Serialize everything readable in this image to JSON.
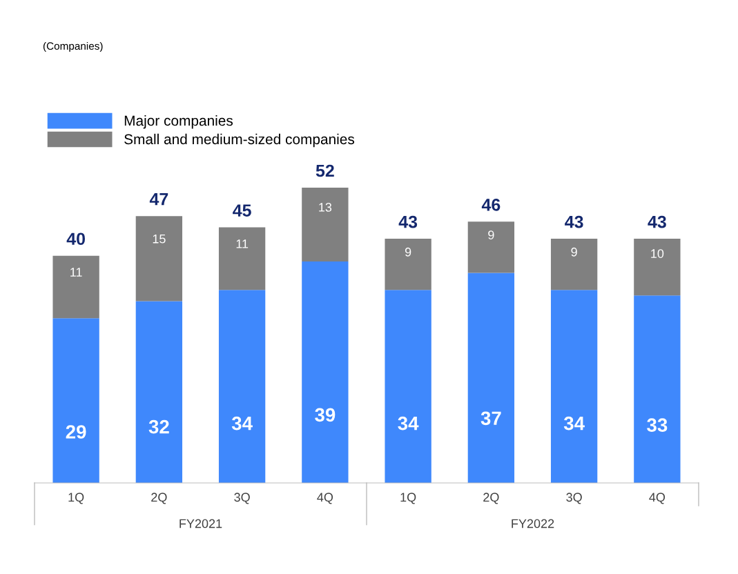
{
  "chart_data": {
    "type": "bar",
    "stacked": true,
    "categories": [
      "1Q",
      "2Q",
      "3Q",
      "4Q",
      "1Q",
      "2Q",
      "3Q",
      "4Q"
    ],
    "series": [
      {
        "name": "Major companies",
        "color": "#3f88fc",
        "values": [
          29,
          32,
          34,
          39,
          34,
          37,
          34,
          33
        ]
      },
      {
        "name": "Small and medium-sized companies",
        "color": "#808080",
        "values": [
          11,
          15,
          11,
          13,
          9,
          9,
          9,
          10
        ]
      }
    ],
    "data_labels": true,
    "totals": [
      "40",
      "47",
      "45",
      "52",
      "43",
      "46",
      "43",
      "43"
    ],
    "annotations": [
      "(Companies)",
      "FY2021",
      "FY2022"
    ],
    "legend": "top left",
    "grid": false
  }
}
